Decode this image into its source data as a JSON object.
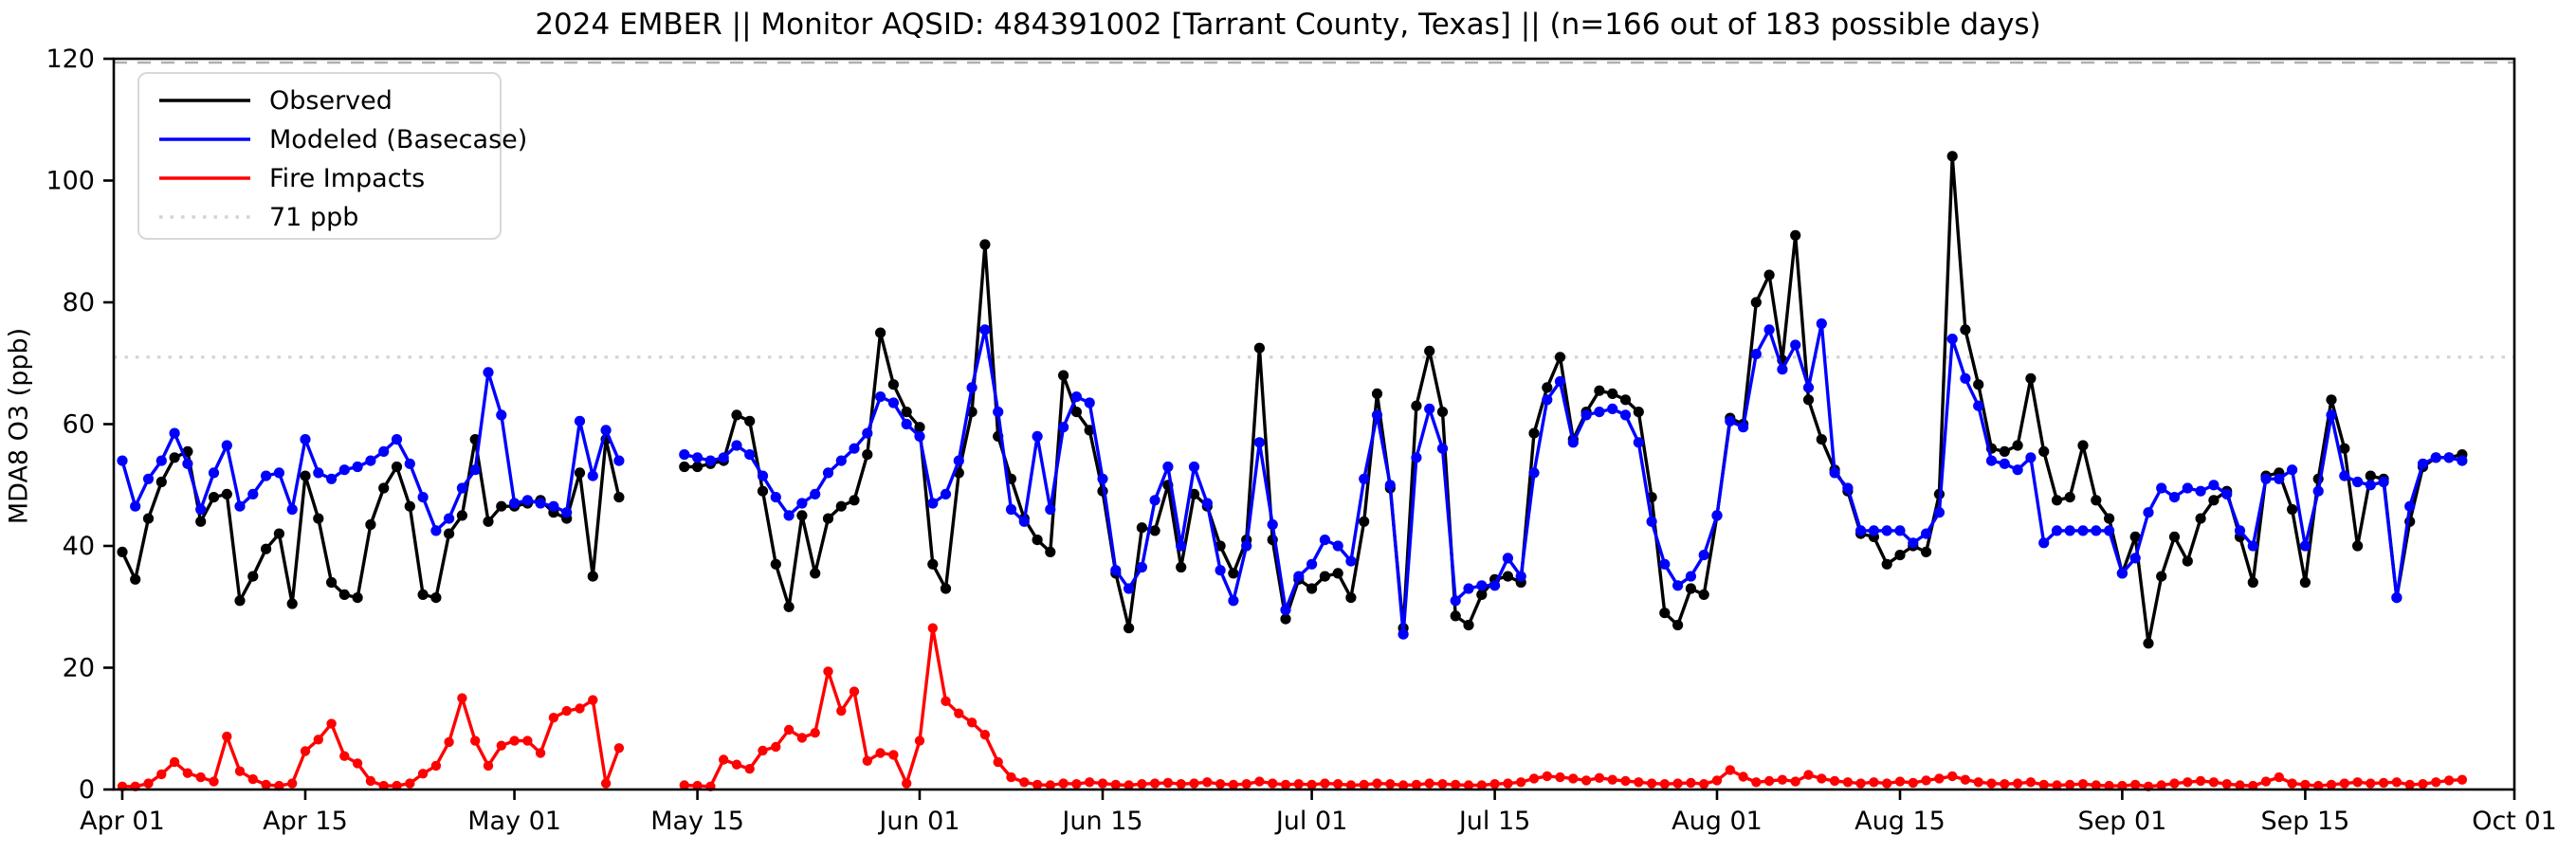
{
  "title": "2024 EMBER || Monitor AQSID: 484391002 [Tarrant County, Texas] || (n=166 out of 183 possible days)",
  "monitor": {
    "year": "2024",
    "program": "EMBER",
    "aqsid": "484391002",
    "location": "Tarrant County, Texas",
    "days_observed": "166",
    "days_possible": "183"
  },
  "legend": {
    "items": [
      "Observed",
      "Modeled (Basecase)",
      "Fire Impacts",
      "71 ppb"
    ]
  },
  "chart_data": {
    "type": "line",
    "title": "2024 EMBER || Monitor AQSID: 484391002 [Tarrant County, Texas] || (n=166 out of 183 possible days)",
    "xlabel": "",
    "ylabel": "MDA8 O3 (ppb)",
    "ylim": [
      0,
      120
    ],
    "y_ticks": [
      0,
      20,
      40,
      60,
      80,
      100,
      120
    ],
    "x_start_date": "2024-04-01",
    "x_total_days": 183,
    "x_tick_days": [
      0,
      14,
      30,
      44,
      61,
      75,
      91,
      105,
      122,
      136,
      153,
      167,
      183
    ],
    "x_tick_labels": [
      "Apr 01",
      "Apr 15",
      "May 01",
      "May 15",
      "Jun 01",
      "Jun 15",
      "Jul 01",
      "Jul 15",
      "Aug 01",
      "Aug 15",
      "Sep 01",
      "Sep 15",
      "Oct 01"
    ],
    "grid": false,
    "legend_position": "upper left",
    "threshold": {
      "label": "71 ppb",
      "value": 71,
      "color": "#d3d3d3",
      "style": "dotted"
    },
    "top_reference_line": {
      "value": 120,
      "color": "#b0b0b0",
      "style": "dashed"
    },
    "series": [
      {
        "name": "Observed",
        "color": "#000000",
        "values": [
          39,
          34.5,
          44.5,
          50.5,
          54.5,
          55.5,
          44,
          48,
          48.5,
          31,
          35,
          39.5,
          42,
          30.5,
          51.5,
          44.5,
          34,
          32,
          31.5,
          43.5,
          49.5,
          53,
          46.5,
          32,
          31.5,
          42,
          45,
          57.5,
          44,
          46.5,
          46.5,
          47,
          47.5,
          45.5,
          44.5,
          52,
          35,
          57.5,
          48,
          null,
          null,
          null,
          null,
          53,
          53,
          53.5,
          54,
          61.5,
          60.5,
          49,
          37,
          30,
          45,
          35.5,
          44.5,
          46.5,
          47.5,
          55,
          75,
          66.5,
          62,
          59.5,
          37,
          33,
          52,
          62,
          89.5,
          58,
          51,
          44.5,
          41,
          39,
          68,
          62,
          59,
          49,
          35.5,
          26.5,
          43,
          42.5,
          50,
          36.5,
          48.5,
          46.5,
          40,
          35.5,
          41,
          72.5,
          41,
          28,
          34.5,
          33,
          35,
          35.5,
          31.5,
          44,
          65,
          49.5,
          26.5,
          63,
          72,
          62,
          28.5,
          27,
          32,
          34.5,
          35,
          34,
          58.5,
          66,
          71,
          57.5,
          62,
          65.5,
          65,
          64,
          62,
          48,
          29,
          27,
          33,
          32,
          45,
          61,
          60,
          80,
          84.5,
          70.5,
          91,
          64,
          57.5,
          52.5,
          49,
          42,
          41.5,
          37,
          38.5,
          40,
          39,
          48.5,
          104,
          75.5,
          66.5,
          56,
          55.5,
          56.5,
          67.5,
          55.5,
          47.5,
          48,
          56.5,
          47.5,
          44.5,
          35.5,
          41.5,
          24,
          35,
          41.5,
          37.5,
          44.5,
          47.5,
          49,
          41.5,
          34,
          51.5,
          52,
          46,
          34,
          51,
          64,
          56,
          40,
          51.5,
          51,
          31.5,
          44,
          53,
          54.5,
          54.5,
          55,
          null,
          null,
          null
        ]
      },
      {
        "name": "Modeled (Basecase)",
        "color": "#0000ff",
        "values": [
          54,
          46.5,
          51,
          54,
          58.5,
          53.5,
          46,
          52,
          56.5,
          46.5,
          48.5,
          51.5,
          52,
          46,
          57.5,
          52,
          51,
          52.5,
          53,
          54,
          55.5,
          57.5,
          53.5,
          48,
          42.5,
          44.5,
          49.5,
          52.5,
          68.5,
          61.5,
          47,
          47.5,
          47,
          46.5,
          45.5,
          60.5,
          51.5,
          59,
          54,
          null,
          null,
          null,
          null,
          55,
          54.5,
          54,
          54.5,
          56.5,
          55,
          51.5,
          48,
          45,
          47,
          48.5,
          52,
          54,
          56,
          58.5,
          64.5,
          63.5,
          60,
          58,
          47,
          48.5,
          54,
          66,
          75.5,
          62,
          46,
          44,
          58,
          46,
          59.5,
          64.5,
          63.5,
          51,
          36,
          33,
          36.5,
          47.5,
          53,
          40,
          53,
          47,
          36,
          31,
          40,
          57,
          43.5,
          29.5,
          35,
          37,
          41,
          40,
          37.5,
          51,
          61.5,
          50,
          25.5,
          54.5,
          62.5,
          56,
          31,
          33,
          33.5,
          33.5,
          38,
          35,
          52,
          64,
          67,
          57,
          61.5,
          62,
          62.5,
          61.5,
          57,
          44,
          37,
          33.5,
          35,
          38.5,
          45,
          60.5,
          59.5,
          71.5,
          75.5,
          69,
          73,
          66,
          76.5,
          52,
          49.5,
          42.5,
          42.5,
          42.5,
          42.5,
          40.5,
          42,
          45.5,
          74,
          67.5,
          63,
          54,
          53.5,
          52.5,
          54.5,
          40.5,
          42.5,
          42.5,
          42.5,
          42.5,
          42.5,
          35.5,
          38,
          45.5,
          49.5,
          48,
          49.5,
          49,
          50,
          48.5,
          42.5,
          40,
          51,
          51,
          52.5,
          40,
          49,
          61.5,
          51.5,
          50.5,
          50,
          50.5,
          31.5,
          46.5,
          53.5,
          54.5,
          54.5,
          54,
          null,
          null,
          null
        ]
      },
      {
        "name": "Fire Impacts",
        "color": "#ff0000",
        "values": [
          0.5,
          0.5,
          1,
          2.5,
          4.5,
          2.7,
          2,
          1.3,
          8.7,
          3,
          1.7,
          0.8,
          0.6,
          1,
          6.3,
          8.2,
          10.8,
          5.5,
          4.3,
          1.4,
          0.6,
          0.6,
          1,
          2.6,
          3.9,
          7.8,
          15,
          8,
          3.9,
          7.2,
          8,
          8,
          6,
          11.8,
          12.9,
          13.3,
          14.7,
          1,
          6.8,
          null,
          null,
          null,
          null,
          0.7,
          0.6,
          0.5,
          4.9,
          4.1,
          3.4,
          6.4,
          7,
          9.8,
          8.5,
          9.3,
          19.4,
          12.9,
          16.1,
          4.7,
          6,
          5.7,
          1,
          8,
          26.5,
          14.5,
          12.5,
          11,
          9,
          4.5,
          2,
          1.2,
          0.8,
          0.7,
          1,
          0.9,
          1.2,
          1,
          0.8,
          0.7,
          0.9,
          1,
          1.1,
          0.9,
          1,
          1.2,
          0.9,
          0.8,
          0.9,
          1.3,
          1,
          0.8,
          0.9,
          0.8,
          1,
          0.9,
          0.7,
          0.8,
          1,
          0.9,
          0.7,
          0.8,
          1,
          0.9,
          0.8,
          0.7,
          0.7,
          0.9,
          1,
          1.2,
          1.8,
          2.2,
          2,
          1.8,
          1.5,
          1.9,
          1.6,
          1.4,
          1.2,
          1,
          0.9,
          1,
          1.1,
          0.9,
          1.5,
          3.2,
          2.1,
          1.2,
          1.4,
          1.6,
          1.3,
          2.4,
          1.8,
          1.4,
          1.2,
          1,
          1.2,
          1,
          1.3,
          1.1,
          1.5,
          1.8,
          2.2,
          1.6,
          1.2,
          1,
          0.9,
          1,
          1.2,
          0.8,
          0.7,
          0.8,
          0.9,
          0.7,
          0.6,
          0.6,
          0.8,
          0.5,
          0.7,
          1,
          1.2,
          1.4,
          1.2,
          0.9,
          0.7,
          0.6,
          1.3,
          2,
          1,
          0.8,
          0.6,
          0.8,
          1,
          1.2,
          1,
          1.1,
          1.2,
          0.8,
          0.9,
          1.2,
          1.5,
          1.6,
          null,
          null,
          null
        ]
      }
    ]
  },
  "layout_colors": {
    "axes": "#000000",
    "tick_text": "#000000",
    "legend_border": "#d8d8d8",
    "background": "#ffffff"
  }
}
